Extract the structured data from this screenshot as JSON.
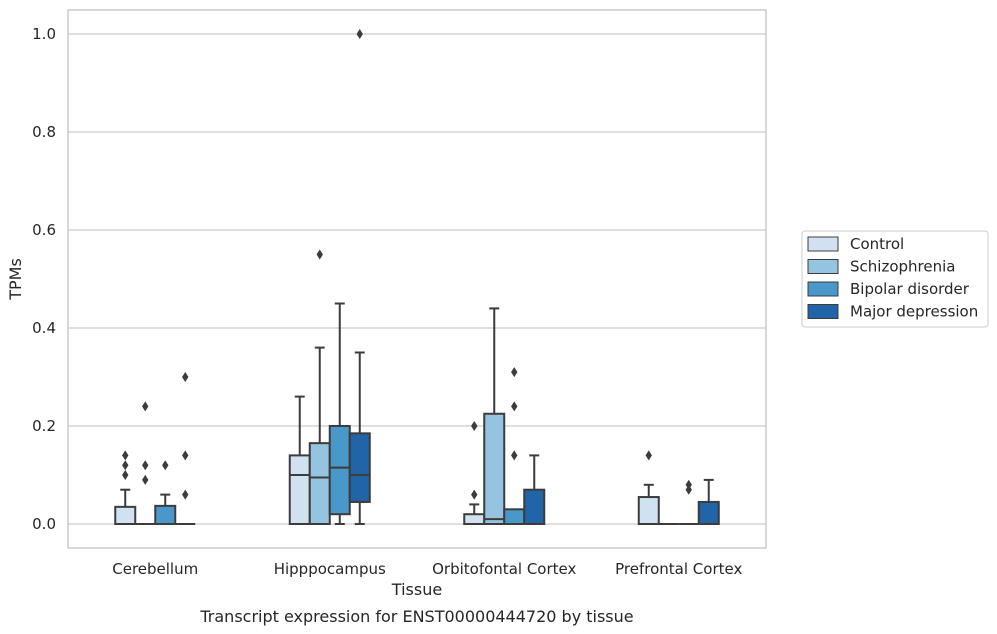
{
  "chart_data": {
    "type": "box",
    "title": "",
    "caption": "Transcript expression for ENST00000444720 by tissue",
    "xlabel": "Tissue",
    "ylabel": "TPMs",
    "ylim": [
      -0.05,
      1.05
    ],
    "yticks": [
      0.0,
      0.2,
      0.4,
      0.6,
      0.8,
      1.0
    ],
    "ytick_labels": [
      "0.0",
      "0.2",
      "0.4",
      "0.6",
      "0.8",
      "1.0"
    ],
    "grid": "horizontal",
    "legend_position": "outside-right",
    "categories": [
      "Cerebellum",
      "Hipppocampus",
      "Orbitofontal Cortex",
      "Prefrontal Cortex"
    ],
    "series": [
      {
        "name": "Control",
        "color": "#d0e1f2",
        "boxes": [
          {
            "q1": 0.0,
            "median": 0.0,
            "q3": 0.035,
            "whisker_low": 0.0,
            "whisker_high": 0.07,
            "outliers": [
              0.1,
              0.12,
              0.14
            ]
          },
          {
            "q1": 0.0,
            "median": 0.1,
            "q3": 0.14,
            "whisker_low": 0.0,
            "whisker_high": 0.26,
            "outliers": []
          },
          {
            "q1": 0.0,
            "median": 0.0,
            "q3": 0.02,
            "whisker_low": 0.0,
            "whisker_high": 0.04,
            "outliers": [
              0.06,
              0.2
            ]
          },
          {
            "q1": 0.0,
            "median": 0.0,
            "q3": 0.055,
            "whisker_low": 0.0,
            "whisker_high": 0.08,
            "outliers": [
              0.14
            ]
          }
        ]
      },
      {
        "name": "Schizophrenia",
        "color": "#94c4df",
        "boxes": [
          {
            "q1": 0.0,
            "median": 0.0,
            "q3": 0.0,
            "whisker_low": 0.0,
            "whisker_high": 0.0,
            "outliers": [
              0.09,
              0.12,
              0.24
            ]
          },
          {
            "q1": 0.0,
            "median": 0.095,
            "q3": 0.165,
            "whisker_low": 0.0,
            "whisker_high": 0.36,
            "outliers": [
              0.55
            ]
          },
          {
            "q1": 0.0,
            "median": 0.01,
            "q3": 0.225,
            "whisker_low": 0.0,
            "whisker_high": 0.44,
            "outliers": []
          },
          {
            "q1": 0.0,
            "median": 0.0,
            "q3": 0.0,
            "whisker_low": 0.0,
            "whisker_high": 0.0,
            "outliers": []
          }
        ]
      },
      {
        "name": "Bipolar disorder",
        "color": "#4a98c9",
        "boxes": [
          {
            "q1": 0.0,
            "median": 0.0,
            "q3": 0.037,
            "whisker_low": 0.0,
            "whisker_high": 0.06,
            "outliers": [
              0.12
            ]
          },
          {
            "q1": 0.02,
            "median": 0.115,
            "q3": 0.2,
            "whisker_low": 0.0,
            "whisker_high": 0.45,
            "outliers": []
          },
          {
            "q1": 0.0,
            "median": 0.0,
            "q3": 0.03,
            "whisker_low": 0.0,
            "whisker_high": 0.03,
            "outliers": [
              0.14,
              0.24,
              0.31
            ]
          },
          {
            "q1": 0.0,
            "median": 0.0,
            "q3": 0.0,
            "whisker_low": 0.0,
            "whisker_high": 0.0,
            "outliers": [
              0.07,
              0.08
            ]
          }
        ]
      },
      {
        "name": "Major depression",
        "color": "#2264a8",
        "boxes": [
          {
            "q1": 0.0,
            "median": 0.0,
            "q3": 0.0,
            "whisker_low": 0.0,
            "whisker_high": 0.0,
            "outliers": [
              0.06,
              0.14,
              0.3
            ]
          },
          {
            "q1": 0.045,
            "median": 0.1,
            "q3": 0.185,
            "whisker_low": 0.0,
            "whisker_high": 0.35,
            "outliers": [
              1.0
            ]
          },
          {
            "q1": 0.0,
            "median": 0.0,
            "q3": 0.07,
            "whisker_low": 0.0,
            "whisker_high": 0.14,
            "outliers": []
          },
          {
            "q1": 0.0,
            "median": 0.0,
            "q3": 0.045,
            "whisker_low": 0.0,
            "whisker_high": 0.09,
            "outliers": []
          }
        ]
      }
    ]
  }
}
